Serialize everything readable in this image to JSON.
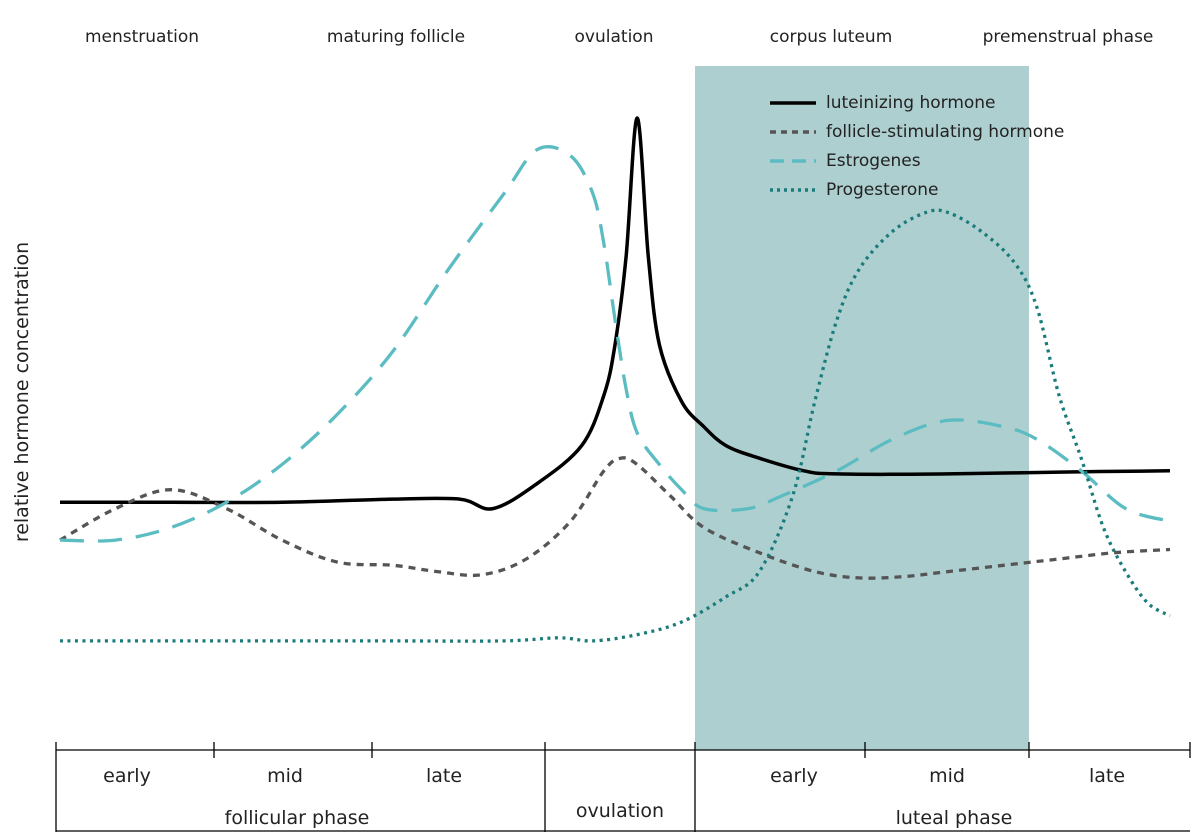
{
  "chart_data": {
    "type": "line",
    "ylabel": "relative hormone concentration",
    "stages": [
      "menstruation",
      "maturing follicle",
      "ovulation",
      "corpus luteum",
      "premenstrual phase"
    ],
    "sub_phases": [
      "early",
      "mid",
      "late",
      "early",
      "mid",
      "late"
    ],
    "phases": [
      "follicular phase",
      "ovulation",
      "luteal phase"
    ],
    "highlight_region": {
      "label": "corpus luteum",
      "color": "#aecfcf"
    },
    "series": [
      {
        "name": "luteinizing hormone",
        "color": "#000000",
        "style": "solid",
        "points": [
          [
            0,
            39
          ],
          [
            10,
            39
          ],
          [
            20,
            39
          ],
          [
            30,
            39.5
          ],
          [
            36,
            39.5
          ],
          [
            39,
            38
          ],
          [
            43,
            42
          ],
          [
            47,
            48
          ],
          [
            49,
            56
          ],
          [
            50,
            64
          ],
          [
            51,
            78
          ],
          [
            52,
            100
          ],
          [
            53,
            78
          ],
          [
            54,
            64
          ],
          [
            56,
            55
          ],
          [
            58,
            51
          ],
          [
            60,
            48
          ],
          [
            63,
            46
          ],
          [
            67,
            44
          ],
          [
            70,
            43.5
          ],
          [
            80,
            43.5
          ],
          [
            90,
            43.8
          ],
          [
            100,
            44
          ]
        ]
      },
      {
        "name": "follicle-stimulating hormone",
        "color": "#555555",
        "style": "dotted",
        "points": [
          [
            0,
            33
          ],
          [
            5,
            38
          ],
          [
            10,
            41
          ],
          [
            15,
            38
          ],
          [
            20,
            33
          ],
          [
            25,
            29.5
          ],
          [
            30,
            29
          ],
          [
            34,
            28
          ],
          [
            38,
            27.5
          ],
          [
            42,
            30
          ],
          [
            46,
            36
          ],
          [
            49,
            44
          ],
          [
            50.5,
            46
          ],
          [
            52,
            45
          ],
          [
            55,
            40
          ],
          [
            58,
            35
          ],
          [
            63,
            31
          ],
          [
            68,
            28
          ],
          [
            72,
            27
          ],
          [
            76,
            27.2
          ],
          [
            80,
            28
          ],
          [
            85,
            29
          ],
          [
            90,
            30
          ],
          [
            95,
            31
          ],
          [
            100,
            31.5
          ]
        ]
      },
      {
        "name": "Estrogenes",
        "color": "#5bbcc2",
        "style": "dashed",
        "points": [
          [
            0,
            33
          ],
          [
            5,
            33
          ],
          [
            10,
            35
          ],
          [
            15,
            39
          ],
          [
            20,
            45
          ],
          [
            25,
            53
          ],
          [
            30,
            63
          ],
          [
            35,
            76
          ],
          [
            40,
            88
          ],
          [
            43,
            95
          ],
          [
            46,
            94
          ],
          [
            48,
            88
          ],
          [
            49,
            80
          ],
          [
            50,
            68
          ],
          [
            51,
            57
          ],
          [
            52,
            50
          ],
          [
            54,
            45
          ],
          [
            56,
            41
          ],
          [
            58,
            38
          ],
          [
            62,
            38
          ],
          [
            65,
            40
          ],
          [
            70,
            44
          ],
          [
            75,
            49
          ],
          [
            80,
            52
          ],
          [
            85,
            51
          ],
          [
            88,
            49
          ],
          [
            92,
            44
          ],
          [
            96,
            38
          ],
          [
            100,
            36
          ]
        ]
      },
      {
        "name": "Progesterone",
        "color": "#1a7b7b",
        "style": "dotted",
        "points": [
          [
            0,
            17
          ],
          [
            10,
            17
          ],
          [
            20,
            17
          ],
          [
            30,
            17
          ],
          [
            40,
            17
          ],
          [
            45,
            17.5
          ],
          [
            48,
            17
          ],
          [
            52,
            18
          ],
          [
            56,
            20
          ],
          [
            60,
            24
          ],
          [
            63,
            28
          ],
          [
            66,
            40
          ],
          [
            68,
            55
          ],
          [
            70,
            68
          ],
          [
            72,
            76
          ],
          [
            75,
            82
          ],
          [
            78,
            85
          ],
          [
            80,
            85
          ],
          [
            83,
            82
          ],
          [
            86,
            77
          ],
          [
            88,
            70
          ],
          [
            90,
            56
          ],
          [
            92,
            46
          ],
          [
            94,
            35
          ],
          [
            96,
            28
          ],
          [
            98,
            23
          ],
          [
            100,
            21
          ]
        ]
      }
    ]
  }
}
